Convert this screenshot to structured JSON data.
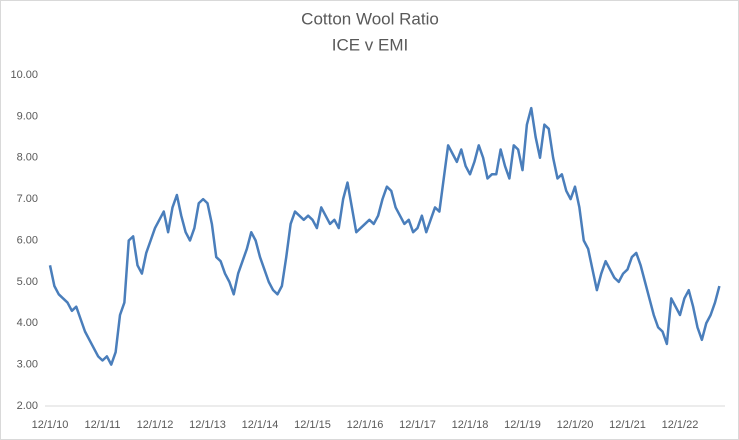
{
  "chart_data": {
    "type": "line",
    "title": "Cotton Wool  Ratio",
    "subtitle": "ICE v EMI",
    "categories": [
      "12/1/10",
      null,
      null,
      null,
      null,
      null,
      null,
      null,
      null,
      null,
      null,
      null,
      "12/1/11",
      null,
      null,
      null,
      null,
      null,
      null,
      null,
      null,
      null,
      null,
      null,
      "12/1/12",
      null,
      null,
      null,
      null,
      null,
      null,
      null,
      null,
      null,
      null,
      null,
      "12/1/13",
      null,
      null,
      null,
      null,
      null,
      null,
      null,
      null,
      null,
      null,
      null,
      "12/1/14",
      null,
      null,
      null,
      null,
      null,
      null,
      null,
      null,
      null,
      null,
      null,
      "12/1/15",
      null,
      null,
      null,
      null,
      null,
      null,
      null,
      null,
      null,
      null,
      null,
      "12/1/16",
      null,
      null,
      null,
      null,
      null,
      null,
      null,
      null,
      null,
      null,
      null,
      "12/1/17",
      null,
      null,
      null,
      null,
      null,
      null,
      null,
      null,
      null,
      null,
      null,
      "12/1/18",
      null,
      null,
      null,
      null,
      null,
      null,
      null,
      null,
      null,
      null,
      null,
      "12/1/19",
      null,
      null,
      null,
      null,
      null,
      null,
      null,
      null,
      null,
      null,
      null,
      "12/1/20",
      null,
      null,
      null,
      null,
      null,
      null,
      null,
      null,
      null,
      null,
      null,
      "12/1/21",
      null,
      null,
      null,
      null,
      null,
      null,
      null,
      null,
      null,
      null,
      null,
      "12/1/22",
      null,
      null,
      null,
      null,
      null,
      null,
      null,
      null,
      null
    ],
    "values": [
      5.4,
      4.9,
      4.7,
      4.6,
      4.5,
      4.3,
      4.4,
      4.1,
      3.8,
      3.6,
      3.4,
      3.2,
      3.1,
      3.2,
      3.0,
      3.3,
      4.2,
      4.5,
      6.0,
      6.1,
      5.4,
      5.2,
      5.7,
      6.0,
      6.3,
      6.5,
      6.7,
      6.2,
      6.8,
      7.1,
      6.6,
      6.2,
      6.0,
      6.3,
      6.9,
      7.0,
      6.9,
      6.4,
      5.6,
      5.5,
      5.2,
      5.0,
      4.7,
      5.2,
      5.5,
      5.8,
      6.2,
      6.0,
      5.6,
      5.3,
      5.0,
      4.8,
      4.7,
      4.9,
      5.6,
      6.4,
      6.7,
      6.6,
      6.5,
      6.6,
      6.5,
      6.3,
      6.8,
      6.6,
      6.4,
      6.5,
      6.3,
      7.0,
      7.4,
      6.8,
      6.2,
      6.3,
      6.4,
      6.5,
      6.4,
      6.6,
      7.0,
      7.3,
      7.2,
      6.8,
      6.6,
      6.4,
      6.5,
      6.2,
      6.3,
      6.6,
      6.2,
      6.5,
      6.8,
      6.7,
      7.5,
      8.3,
      8.1,
      7.9,
      8.2,
      7.8,
      7.6,
      7.9,
      8.3,
      8.0,
      7.5,
      7.6,
      7.6,
      8.2,
      7.8,
      7.5,
      8.3,
      8.2,
      7.7,
      8.8,
      9.2,
      8.5,
      8.0,
      8.8,
      8.7,
      8.0,
      7.5,
      7.6,
      7.2,
      7.0,
      7.3,
      6.8,
      6.0,
      5.8,
      5.3,
      4.8,
      5.2,
      5.5,
      5.3,
      5.1,
      5.0,
      5.2,
      5.3,
      5.6,
      5.7,
      5.4,
      5.0,
      4.6,
      4.2,
      3.9,
      3.8,
      3.5,
      4.6,
      4.4,
      4.2,
      4.6,
      4.8,
      4.4,
      3.9,
      3.6,
      4.0,
      4.2,
      4.5,
      4.9
    ],
    "color": "#4a7ebb",
    "ylim": [
      2,
      10
    ],
    "yticks": [
      {
        "value": 2,
        "label": "2.00"
      },
      {
        "value": 3,
        "label": "3.00"
      },
      {
        "value": 4,
        "label": "4.00"
      },
      {
        "value": 5,
        "label": "5.00"
      },
      {
        "value": 6,
        "label": "6.00"
      },
      {
        "value": 7,
        "label": "7.00"
      },
      {
        "value": 8,
        "label": "8.00"
      },
      {
        "value": 9,
        "label": "9.00"
      },
      {
        "value": 10,
        "label": "10.00"
      }
    ],
    "grid": false
  }
}
